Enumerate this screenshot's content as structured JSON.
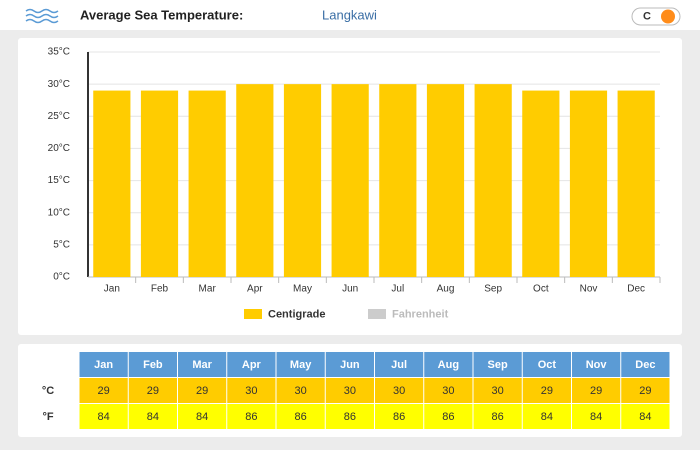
{
  "header": {
    "title": "Average Sea Temperature:",
    "location": "Langkawi",
    "unit_toggle": "C"
  },
  "chart_data": {
    "type": "bar",
    "categories": [
      "Jan",
      "Feb",
      "Mar",
      "Apr",
      "May",
      "Jun",
      "Jul",
      "Aug",
      "Sep",
      "Oct",
      "Nov",
      "Dec"
    ],
    "series": [
      {
        "name": "Centigrade",
        "color": "#ffcc00",
        "visible": true,
        "values": [
          29,
          29,
          29,
          30,
          30,
          30,
          30,
          30,
          30,
          29,
          29,
          29
        ]
      },
      {
        "name": "Fahrenheit",
        "color": "#cccccc",
        "visible": false,
        "values": [
          84,
          84,
          84,
          86,
          86,
          86,
          86,
          86,
          86,
          84,
          84,
          84
        ]
      }
    ],
    "ylim": [
      0,
      35
    ],
    "yticks": [
      {
        "value": 0,
        "label": "0°C"
      },
      {
        "value": 5,
        "label": "5°C"
      },
      {
        "value": 10,
        "label": "10°C"
      },
      {
        "value": 15,
        "label": "15°C"
      },
      {
        "value": 20,
        "label": "20°C"
      },
      {
        "value": 25,
        "label": "25°C"
      },
      {
        "value": 30,
        "label": "30°C"
      },
      {
        "value": 35,
        "label": "35°C"
      }
    ],
    "grid": true
  },
  "table": {
    "row_labels": [
      "°C",
      "°F"
    ]
  }
}
